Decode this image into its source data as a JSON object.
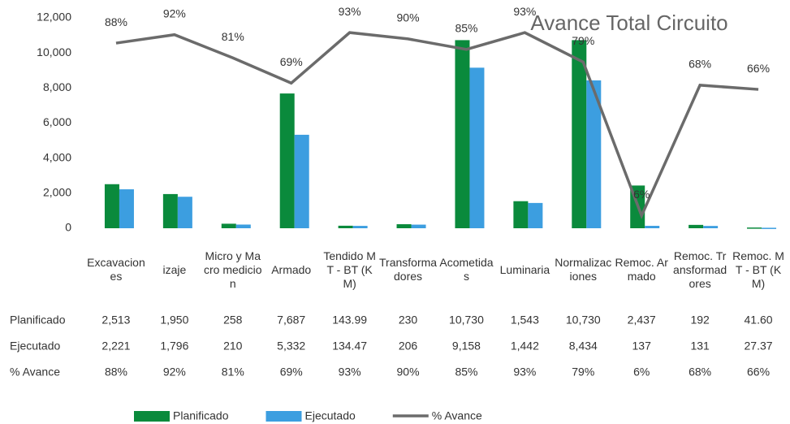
{
  "chart_data": {
    "type": "bar-line",
    "title": "Avance Total Circuito",
    "categories": [
      "Excavaciones",
      "izaje",
      "Micro y Macro medicion",
      "Armado",
      "Tendido MT - BT (KM)",
      "Transformadores",
      "Acometidas",
      "Luminaria",
      "Normalizaciones",
      "Remoc. Armado",
      "Remoc. Transformadores",
      "Remoc. MT - BT (KM)"
    ],
    "series": [
      {
        "name": "Planificado",
        "color": "#0a8a3c",
        "type": "bar",
        "values": [
          2513,
          1950,
          258,
          7687,
          143.99,
          230,
          10730,
          1543,
          10730,
          2437,
          192,
          41.6
        ],
        "value_labels": [
          "2,513",
          "1,950",
          "258",
          "7,687",
          "143.99",
          "230",
          "10,730",
          "1,543",
          "10,730",
          "2,437",
          "192",
          "41.60"
        ]
      },
      {
        "name": "Ejecutado",
        "color": "#3c9ee0",
        "type": "bar",
        "values": [
          2221,
          1796,
          210,
          5332,
          134.47,
          206,
          9158,
          1442,
          8434,
          137,
          131,
          27.37
        ],
        "value_labels": [
          "2,221",
          "1,796",
          "210",
          "5,332",
          "134.47",
          "206",
          "9,158",
          "1,442",
          "8,434",
          "137",
          "131",
          "27.37"
        ]
      },
      {
        "name": "% Avance",
        "color": "#6b6b6b",
        "type": "line",
        "axis": "y2",
        "values": [
          88,
          92,
          81,
          69,
          93,
          90,
          85,
          93,
          79,
          6,
          68,
          66
        ],
        "value_labels": [
          "88%",
          "92%",
          "81%",
          "69%",
          "93%",
          "90%",
          "85%",
          "93%",
          "79%",
          "6%",
          "68%",
          "66%"
        ]
      }
    ],
    "ylim": [
      0,
      12000
    ],
    "yticks": [
      0,
      {
        "value": 2000,
        "label": "2,000"
      },
      {
        "value": 4000,
        "label": "4,000"
      },
      {
        "value": 6000,
        "label": "6,000"
      },
      {
        "value": 8000,
        "label": "8,000"
      },
      {
        "value": 10000,
        "label": "10,000"
      },
      {
        "value": 12000,
        "label": "12,000"
      }
    ],
    "y2lim": [
      0,
      100
    ],
    "grid": false,
    "legend": "bottom"
  }
}
